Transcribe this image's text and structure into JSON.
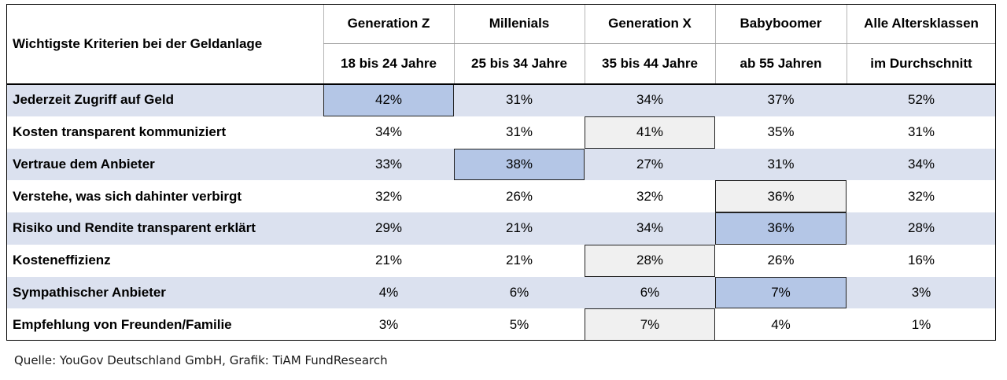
{
  "chart_data": {
    "type": "table",
    "row_header": "Wichtigste Kriterien bei der Geldanlage",
    "columns": [
      {
        "name": "Generation Z",
        "sub": "18 bis 24 Jahre"
      },
      {
        "name": "Millenials",
        "sub": "25 bis 34 Jahre"
      },
      {
        "name": "Generation X",
        "sub": "35 bis 44 Jahre"
      },
      {
        "name": "Babyboomer",
        "sub": "ab 55 Jahren"
      },
      {
        "name": "Alle Altersklassen",
        "sub": "im Durchschnitt"
      }
    ],
    "rows": [
      {
        "label": "Jederzeit Zugriff auf Geld",
        "values": [
          "42%",
          "31%",
          "34%",
          "37%",
          "52%"
        ],
        "highlight": 0,
        "highlight_style": "blue"
      },
      {
        "label": "Kosten transparent kommuniziert",
        "values": [
          "34%",
          "31%",
          "41%",
          "35%",
          "31%"
        ],
        "highlight": 2,
        "highlight_style": "grey"
      },
      {
        "label": "Vertraue dem Anbieter",
        "values": [
          "33%",
          "38%",
          "27%",
          "31%",
          "34%"
        ],
        "highlight": 1,
        "highlight_style": "blue"
      },
      {
        "label": "Verstehe, was sich dahinter verbirgt",
        "values": [
          "32%",
          "26%",
          "32%",
          "36%",
          "32%"
        ],
        "highlight": 3,
        "highlight_style": "grey"
      },
      {
        "label": "Risiko und Rendite transparent erklärt",
        "values": [
          "29%",
          "21%",
          "34%",
          "36%",
          "28%"
        ],
        "highlight": 3,
        "highlight_style": "blue"
      },
      {
        "label": "Kosteneffizienz",
        "values": [
          "21%",
          "21%",
          "28%",
          "26%",
          "16%"
        ],
        "highlight": 2,
        "highlight_style": "grey"
      },
      {
        "label": "Sympathischer Anbieter",
        "values": [
          "4%",
          "6%",
          "6%",
          "7%",
          "3%"
        ],
        "highlight": 3,
        "highlight_style": "blue"
      },
      {
        "label": "Empfehlung von Freunden/Familie",
        "values": [
          "3%",
          "5%",
          "7%",
          "4%",
          "1%"
        ],
        "highlight": 2,
        "highlight_style": "grey"
      }
    ]
  },
  "source": "Quelle: YouGov Deutschland GmbH, Grafik: TiAM FundResearch",
  "colors": {
    "band": "#dbe1ef",
    "highlight_blue": "#b4c6e6",
    "highlight_grey": "#f0f0f0"
  }
}
